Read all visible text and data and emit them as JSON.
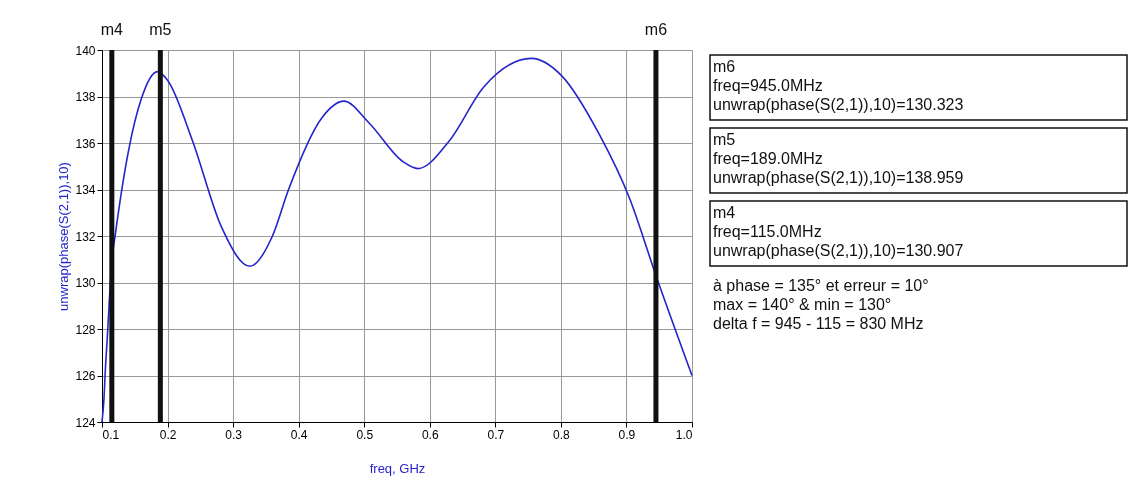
{
  "chart_data": {
    "type": "line",
    "xlabel": "freq, GHz",
    "ylabel": "unwrap(phase(S(2,1)),10)",
    "series": [
      {
        "color": "#2424cc",
        "x": [
          0.1,
          0.103,
          0.105,
          0.108,
          0.115,
          0.1205,
          0.14,
          0.16,
          0.1846,
          0.2,
          0.238,
          0.282,
          0.3256,
          0.36,
          0.3846,
          0.4358,
          0.469,
          0.5077,
          0.559,
          0.582,
          0.63,
          0.682,
          0.755,
          0.801,
          0.858,
          0.905,
          0.945,
          1.0
        ],
        "values": [
          124.0,
          125.0,
          126.2,
          127.6,
          130.9,
          132.1,
          135.6,
          137.9,
          139.07,
          138.7,
          136.1,
          132.4,
          130.7,
          132.0,
          134.0,
          137.1,
          137.8,
          136.85,
          135.2,
          134.9,
          136.1,
          138.4,
          139.64,
          138.9,
          136.4,
          133.6,
          130.3,
          126.0
        ]
      }
    ],
    "xlim": [
      0.1,
      1.0
    ],
    "xticks": [
      0.1,
      0.2,
      0.3,
      0.4,
      0.5,
      0.6,
      0.7,
      0.8,
      0.9,
      {
        "value": 1.0,
        "label": "1.0"
      }
    ],
    "ylim": [
      124,
      140
    ],
    "yticks": [
      124,
      126,
      128,
      130,
      132,
      134,
      136,
      138,
      140
    ],
    "grid": true,
    "ref_lines": [
      {
        "axis": "x",
        "value": 0.115,
        "label": "m4",
        "color": "#111111"
      },
      {
        "axis": "x",
        "value": 0.189,
        "label": "m5",
        "color": "#111111"
      },
      {
        "axis": "x",
        "value": 0.945,
        "label": "m6",
        "color": "#111111"
      }
    ],
    "annotations": [
      "m6\nfreq=945.0MHz\nunwrap(phase(S(2,1)),10)=130.323",
      "m5\nfreq=189.0MHz\nunwrap(phase(S(2,1)),10)=138.959",
      "m4\nfreq=115.0MHz\nunwrap(phase(S(2,1)),10)=130.907",
      "à phase = 135° et erreur = 10°\nmax = 140°   &   min = 130°\ndelta f = 945 - 115 =  830 MHz"
    ]
  }
}
